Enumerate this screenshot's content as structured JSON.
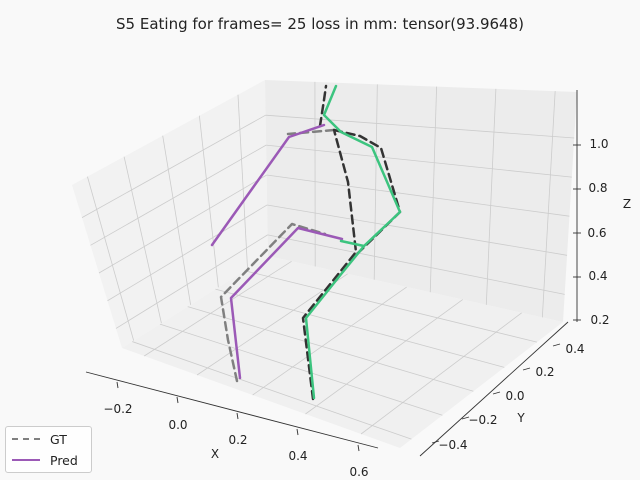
{
  "chart_data": {
    "type": "line",
    "projection": "3d",
    "title": "S5 Eating for frames= 25 loss in mm: tensor(93.9648)",
    "xlabel": "X",
    "ylabel": "Y",
    "zlabel": "Z",
    "x_ticks": [
      "−0.2",
      "0.0",
      "0.2",
      "0.4",
      "0.6"
    ],
    "y_ticks": [
      "0.4",
      "0.2",
      "0.0",
      "−0.2",
      "−0.4"
    ],
    "z_ticks": [
      "0.2",
      "0.4",
      "0.6",
      "0.8",
      "1.0"
    ],
    "grid": true,
    "legend_position": "lower-left",
    "series": [
      {
        "name": "GT",
        "style": "dashed",
        "color": "#808080"
      },
      {
        "name": "Pred",
        "style": "solid",
        "color": "#9b59b6"
      }
    ],
    "colors": {
      "gt_left": "#808080",
      "gt_right": "#333333",
      "pred_left": "#9b59b6",
      "pred_right": "#3cc47f",
      "grid": "#cccccc",
      "background": "#f9f9f9"
    }
  }
}
